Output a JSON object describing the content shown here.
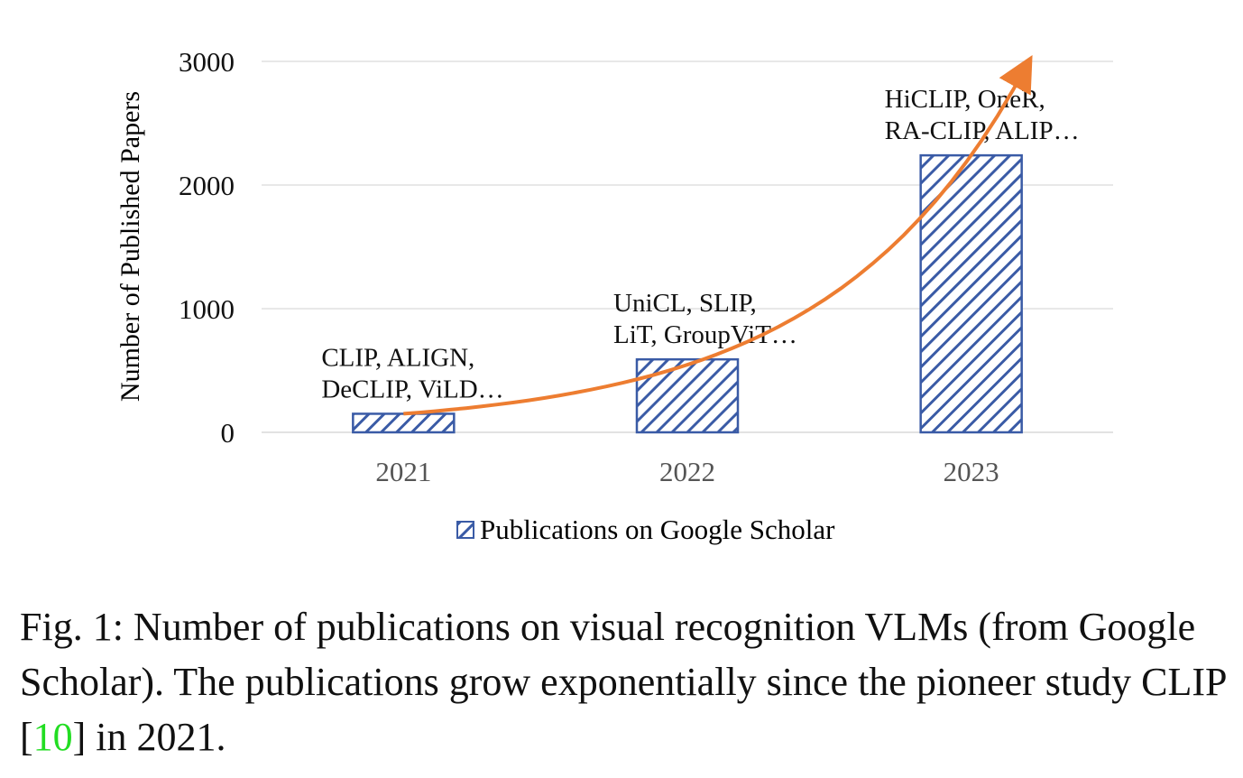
{
  "chart_data": {
    "type": "bar",
    "categories": [
      "2021",
      "2022",
      "2023"
    ],
    "series": [
      {
        "name": "Publications on Google Scholar",
        "values": [
          150,
          590,
          2240
        ]
      }
    ],
    "title": "",
    "xlabel": "",
    "ylabel": "Number of Published Papers",
    "ylim": [
      0,
      3000
    ],
    "yticks": [
      "0",
      "1000",
      "2000",
      "3000"
    ],
    "grid": true,
    "legend_position": "bottom",
    "bar_pattern": "diagonal-hatch",
    "colors": {
      "bar": "#3a5ba6",
      "trend": "#ed7d31",
      "grid": "#d9d9d9",
      "tick_text": "#555555"
    },
    "annotations": [
      {
        "category": "2021",
        "lines": [
          "CLIP, ALIGN,",
          "DeCLIP, ViLD…"
        ]
      },
      {
        "category": "2022",
        "lines": [
          "UniCL, SLIP,",
          "LiT, GroupViT…"
        ]
      },
      {
        "category": "2023",
        "lines": [
          "HiCLIP, OneR,",
          "RA-CLIP, ALIP…"
        ]
      }
    ],
    "trend_arrow": {
      "from_value": 150,
      "to_value": 3000,
      "shape": "exponential"
    }
  },
  "caption": {
    "prefix": "Fig. 1: Number of publications on visual recognition VLMs (from Google Scholar). The publications grow exponentially since the pioneer study CLIP [",
    "ref": "10",
    "suffix": "] in 2021."
  }
}
